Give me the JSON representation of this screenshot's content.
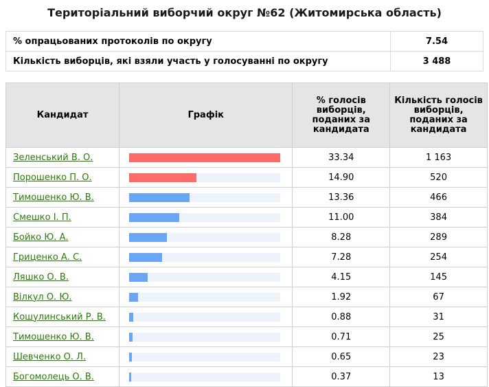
{
  "page": {
    "title": "Територіальний виборчий округ №62 (Житомирська область)"
  },
  "summary": [
    {
      "label": "% опрацьованих протоколів по округу",
      "value": "7.54"
    },
    {
      "label": "Кількість виборців, які взяли участь у голосуванні по округу",
      "value": "3 488"
    }
  ],
  "table": {
    "headers": {
      "candidate": "Кандидат",
      "graph": "Графік",
      "percent": "% голосів виборців, поданих за кандидата",
      "count": "Кількість голосів виборців, поданих за кандидата"
    },
    "bar_colors": {
      "top": "#ff6b6b",
      "other": "#6ba6f5",
      "track": "#eef3fb"
    },
    "rows": [
      {
        "name": "Зеленський В. О.",
        "percent": "33.34",
        "count": "1 163",
        "share": 33.34,
        "highlight": true
      },
      {
        "name": "Порошенко П. О.",
        "percent": "14.90",
        "count": "520",
        "share": 14.9,
        "highlight": true
      },
      {
        "name": "Тимошенко Ю. В.",
        "percent": "13.36",
        "count": "466",
        "share": 13.36,
        "highlight": false
      },
      {
        "name": "Смешко І. П.",
        "percent": "11.00",
        "count": "384",
        "share": 11.0,
        "highlight": false
      },
      {
        "name": "Бойко Ю. А.",
        "percent": "8.28",
        "count": "289",
        "share": 8.28,
        "highlight": false
      },
      {
        "name": "Гриценко А. С.",
        "percent": "7.28",
        "count": "254",
        "share": 7.28,
        "highlight": false
      },
      {
        "name": "Ляшко О. В.",
        "percent": "4.15",
        "count": "145",
        "share": 4.15,
        "highlight": false
      },
      {
        "name": "Вілкул О. Ю.",
        "percent": "1.92",
        "count": "67",
        "share": 1.92,
        "highlight": false
      },
      {
        "name": "Кошулинський Р. В.",
        "percent": "0.88",
        "count": "31",
        "share": 0.88,
        "highlight": false
      },
      {
        "name": "Тимошенко Ю. В.",
        "percent": "0.71",
        "count": "25",
        "share": 0.71,
        "highlight": false
      },
      {
        "name": "Шевченко О. Л.",
        "percent": "0.65",
        "count": "23",
        "share": 0.65,
        "highlight": false
      },
      {
        "name": "Богомолець О. В.",
        "percent": "0.37",
        "count": "13",
        "share": 0.37,
        "highlight": false
      }
    ]
  }
}
